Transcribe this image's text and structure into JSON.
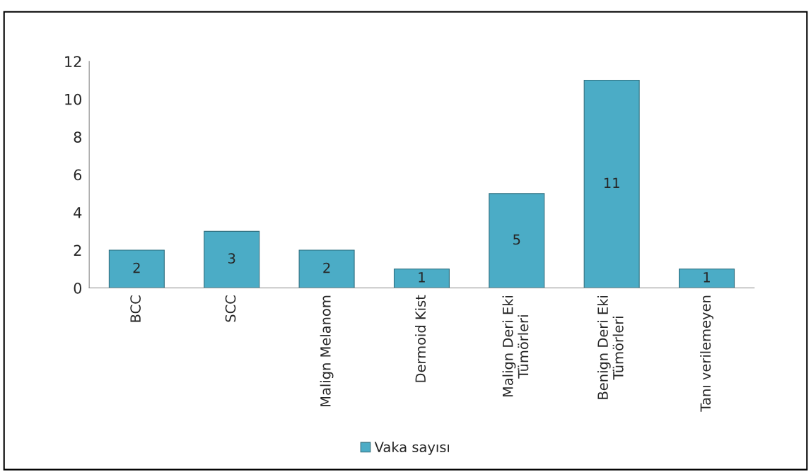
{
  "chart_data": {
    "type": "bar",
    "categories": [
      "BCC",
      "SCC",
      "Malign Melanom",
      "Dermoid Kist",
      "Malign Deri Eki\nTümörleri",
      "Benign Deri Eki\nTümörleri",
      "Tanı verilemeyen"
    ],
    "series": [
      {
        "name": "Vaka sayısı",
        "color": "#4bacc6",
        "values": [
          2,
          3,
          2,
          1,
          5,
          11,
          1
        ]
      }
    ],
    "ylim": [
      0,
      12
    ],
    "yticks": [
      0,
      2,
      4,
      6,
      8,
      10,
      12
    ],
    "data_labels": true,
    "grid": false,
    "legend": "bottom"
  }
}
